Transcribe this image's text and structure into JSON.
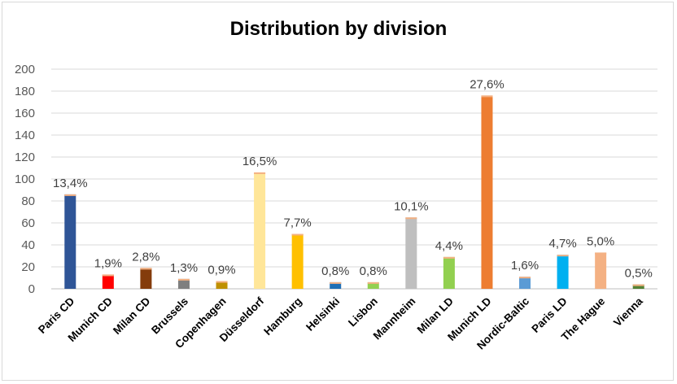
{
  "chart_data": {
    "type": "bar",
    "title": "Distribution by division",
    "xlabel": "",
    "ylabel": "",
    "ylim": [
      0,
      200
    ],
    "ytick_step": 20,
    "grid": true,
    "categories": [
      "Paris CD",
      "Munich CD",
      "Milan CD",
      "Brussels",
      "Copenhagen",
      "Düsseldorf",
      "Hamburg",
      "Helsinki",
      "Lisbon",
      "Mannheim",
      "Milan LD",
      "Munich LD",
      "Nordic-Baltic",
      "Paris LD",
      "The Hague",
      "Vienna"
    ],
    "values": [
      86,
      13,
      19,
      9,
      7,
      106,
      50,
      6,
      6,
      65,
      29,
      176,
      11,
      31,
      33,
      4
    ],
    "data_labels": [
      "13,4%",
      "1,9%",
      "2,8%",
      "1,3%",
      "0,9%",
      "16,5%",
      "7,7%",
      "0,8%",
      "0,8%",
      "10,1%",
      "4,4%",
      "27,6%",
      "1,6%",
      "4,7%",
      "5,0%",
      "0,5%"
    ],
    "colors": [
      "#2f5597",
      "#ff0000",
      "#843c0c",
      "#7f7f7f",
      "#bf9000",
      "#ffe699",
      "#ffc000",
      "#1f6fb5",
      "#92d050",
      "#bfbfbf",
      "#92d050",
      "#ed7d31",
      "#5b9bd5",
      "#00b0f0",
      "#f4b183",
      "#548235"
    ],
    "cap_color": "#f4b183"
  }
}
